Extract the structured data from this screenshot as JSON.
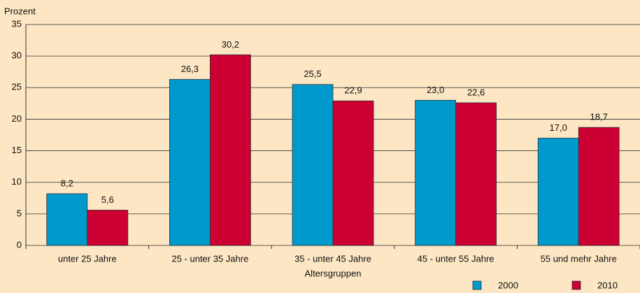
{
  "chart_data": {
    "type": "bar",
    "y_label": "Prozent",
    "x_label": "Altersgruppen",
    "categories": [
      "unter 25 Jahre",
      "25 - unter 35 Jahre",
      "35 - unter 45 Jahre",
      "45 - unter 55 Jahre",
      "55 und mehr Jahre"
    ],
    "series": [
      {
        "name": "2000",
        "color": "#0099cc",
        "values": [
          8.2,
          26.3,
          25.5,
          23.0,
          17.0
        ],
        "value_labels": [
          "8,2",
          "26,3",
          "25,5",
          "23,0",
          "17,0"
        ]
      },
      {
        "name": "2010",
        "color": "#cc0033",
        "values": [
          5.6,
          30.2,
          22.9,
          22.6,
          18.7
        ],
        "value_labels": [
          "5,6",
          "30,2",
          "22,9",
          "22,6",
          "18,7"
        ]
      }
    ],
    "ylim": [
      0,
      35
    ],
    "yticks": [
      0,
      5,
      10,
      15,
      20,
      25,
      30,
      35
    ],
    "grid": true,
    "legend": "bottom-right"
  }
}
